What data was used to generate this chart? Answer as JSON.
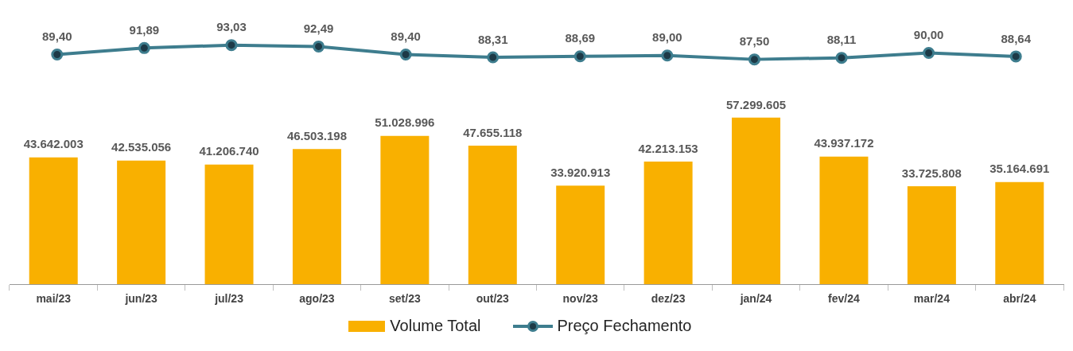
{
  "chart_data": [
    {
      "type": "line",
      "categories": [
        null,
        null,
        null,
        null,
        null,
        null,
        null,
        null,
        null,
        null,
        null,
        null
      ],
      "tick_labels": false,
      "grid": false,
      "legend": "bottom",
      "series": [
        {
          "name": "Preço Fechamento",
          "color": "#3e7d8e",
          "marker": "circle",
          "values": [
            89.4,
            91.89,
            93.03,
            92.49,
            89.4,
            88.31,
            88.69,
            89.0,
            87.5,
            88.11,
            90.0,
            88.64
          ],
          "value_labels": [
            "89,40",
            "91,89",
            "93,03",
            "92,49",
            "89,40",
            "88,31",
            "88,69",
            "89,00",
            "87,50",
            "88,11",
            "90,00",
            "88,64"
          ]
        }
      ]
    },
    {
      "type": "bar",
      "categories": [
        "mai/23",
        "jun/23",
        "jul/23",
        "ago/23",
        "set/23",
        "out/23",
        "nov/23",
        "dez/23",
        "jan/24",
        "fev/24",
        "mar/24",
        "abr/24"
      ],
      "tick_labels": "x",
      "grid": false,
      "legend": "bottom",
      "series": [
        {
          "name": "Volume Total",
          "color": "#f9b000",
          "values": [
            43642003,
            42535056,
            41206740,
            46503198,
            51028996,
            47655118,
            33920913,
            42213153,
            57299605,
            43937172,
            33725808,
            35164691
          ],
          "value_labels": [
            "43.642.003",
            "42.535.056",
            "41.206.740",
            "46.503.198",
            "51.028.996",
            "47.655.118",
            "33.920.913",
            "42.213.153",
            "57.299.605",
            "43.937.172",
            "33.725.808",
            "35.164.691"
          ]
        }
      ]
    }
  ]
}
